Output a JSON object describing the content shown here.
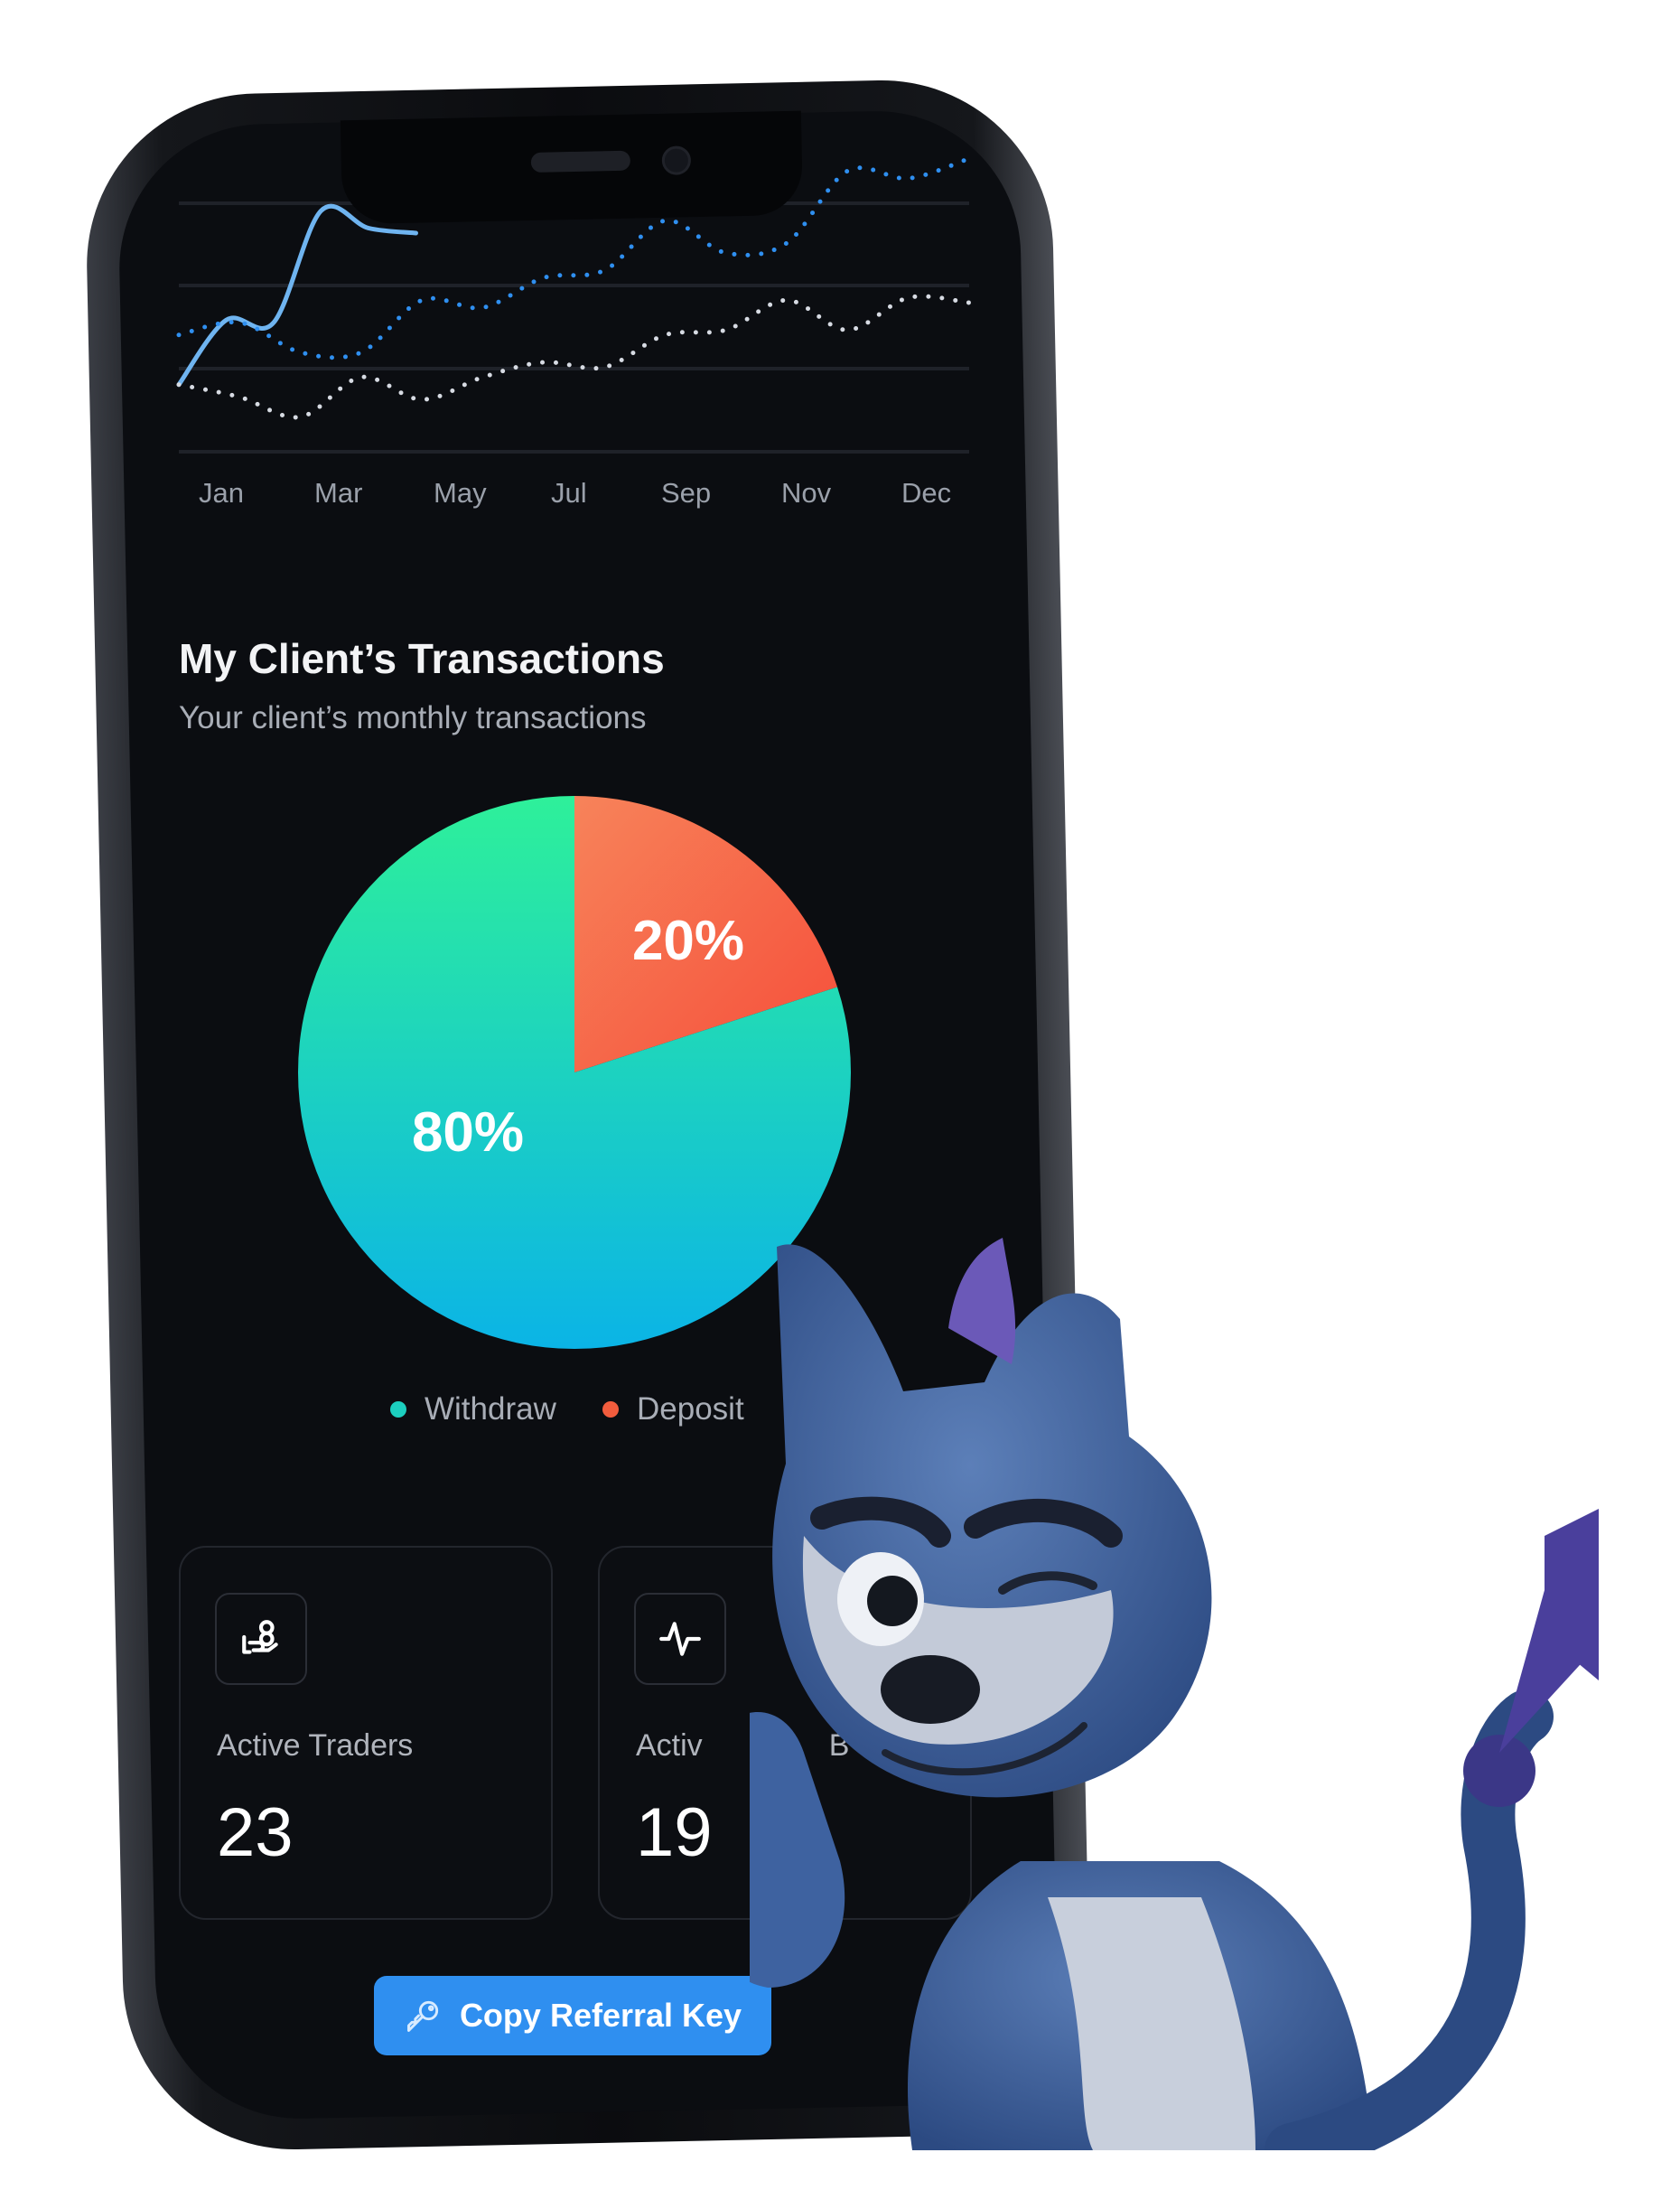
{
  "line_chart": {
    "chart_data": {
      "type": "line",
      "x_tick_labels": [
        "Jan",
        "Mar",
        "May",
        "Jul",
        "Sep",
        "Nov",
        "Dec"
      ],
      "grid": true,
      "series": [
        {
          "style": "solid",
          "color": "#6fb4f0",
          "values": [
            27,
            53,
            52,
            97,
            90,
            88
          ]
        },
        {
          "style": "dotted",
          "color": "#2f8ff0",
          "values": [
            47,
            52,
            40,
            40,
            61,
            58,
            70,
            73,
            93,
            80,
            84,
            113,
            110,
            118
          ]
        },
        {
          "style": "dotted",
          "color": "#d7dbe3",
          "values": [
            27,
            22,
            14,
            30,
            21,
            30,
            36,
            34,
            47,
            49,
            61,
            49,
            62,
            60
          ]
        }
      ]
    }
  },
  "transactions": {
    "title": "My Client’s Transactions",
    "subtitle": "Your client’s monthly transactions",
    "chart_data": {
      "type": "pie",
      "slices": [
        {
          "label": "Withdraw",
          "value": 80,
          "text": "80%",
          "colors": [
            "#2ef09a",
            "#0bb4e6"
          ]
        },
        {
          "label": "Deposit",
          "value": 20,
          "text": "20%",
          "colors": [
            "#f7835a",
            "#f64e3a"
          ]
        }
      ],
      "legend": "bottom"
    },
    "legend": [
      {
        "label": "Withdraw",
        "color": "#1ccfbf"
      },
      {
        "label": "Deposit",
        "color": "#f25c3d"
      }
    ]
  },
  "cards": [
    {
      "label": "Active Traders",
      "value": "23",
      "icon": "hand-coins-icon"
    },
    {
      "label": "Activ",
      "label_tail": "B",
      "value": "19",
      "icon": "activity-pulse-icon"
    }
  ],
  "button": {
    "label": "Copy Referral Key",
    "icon": "key-icon"
  }
}
